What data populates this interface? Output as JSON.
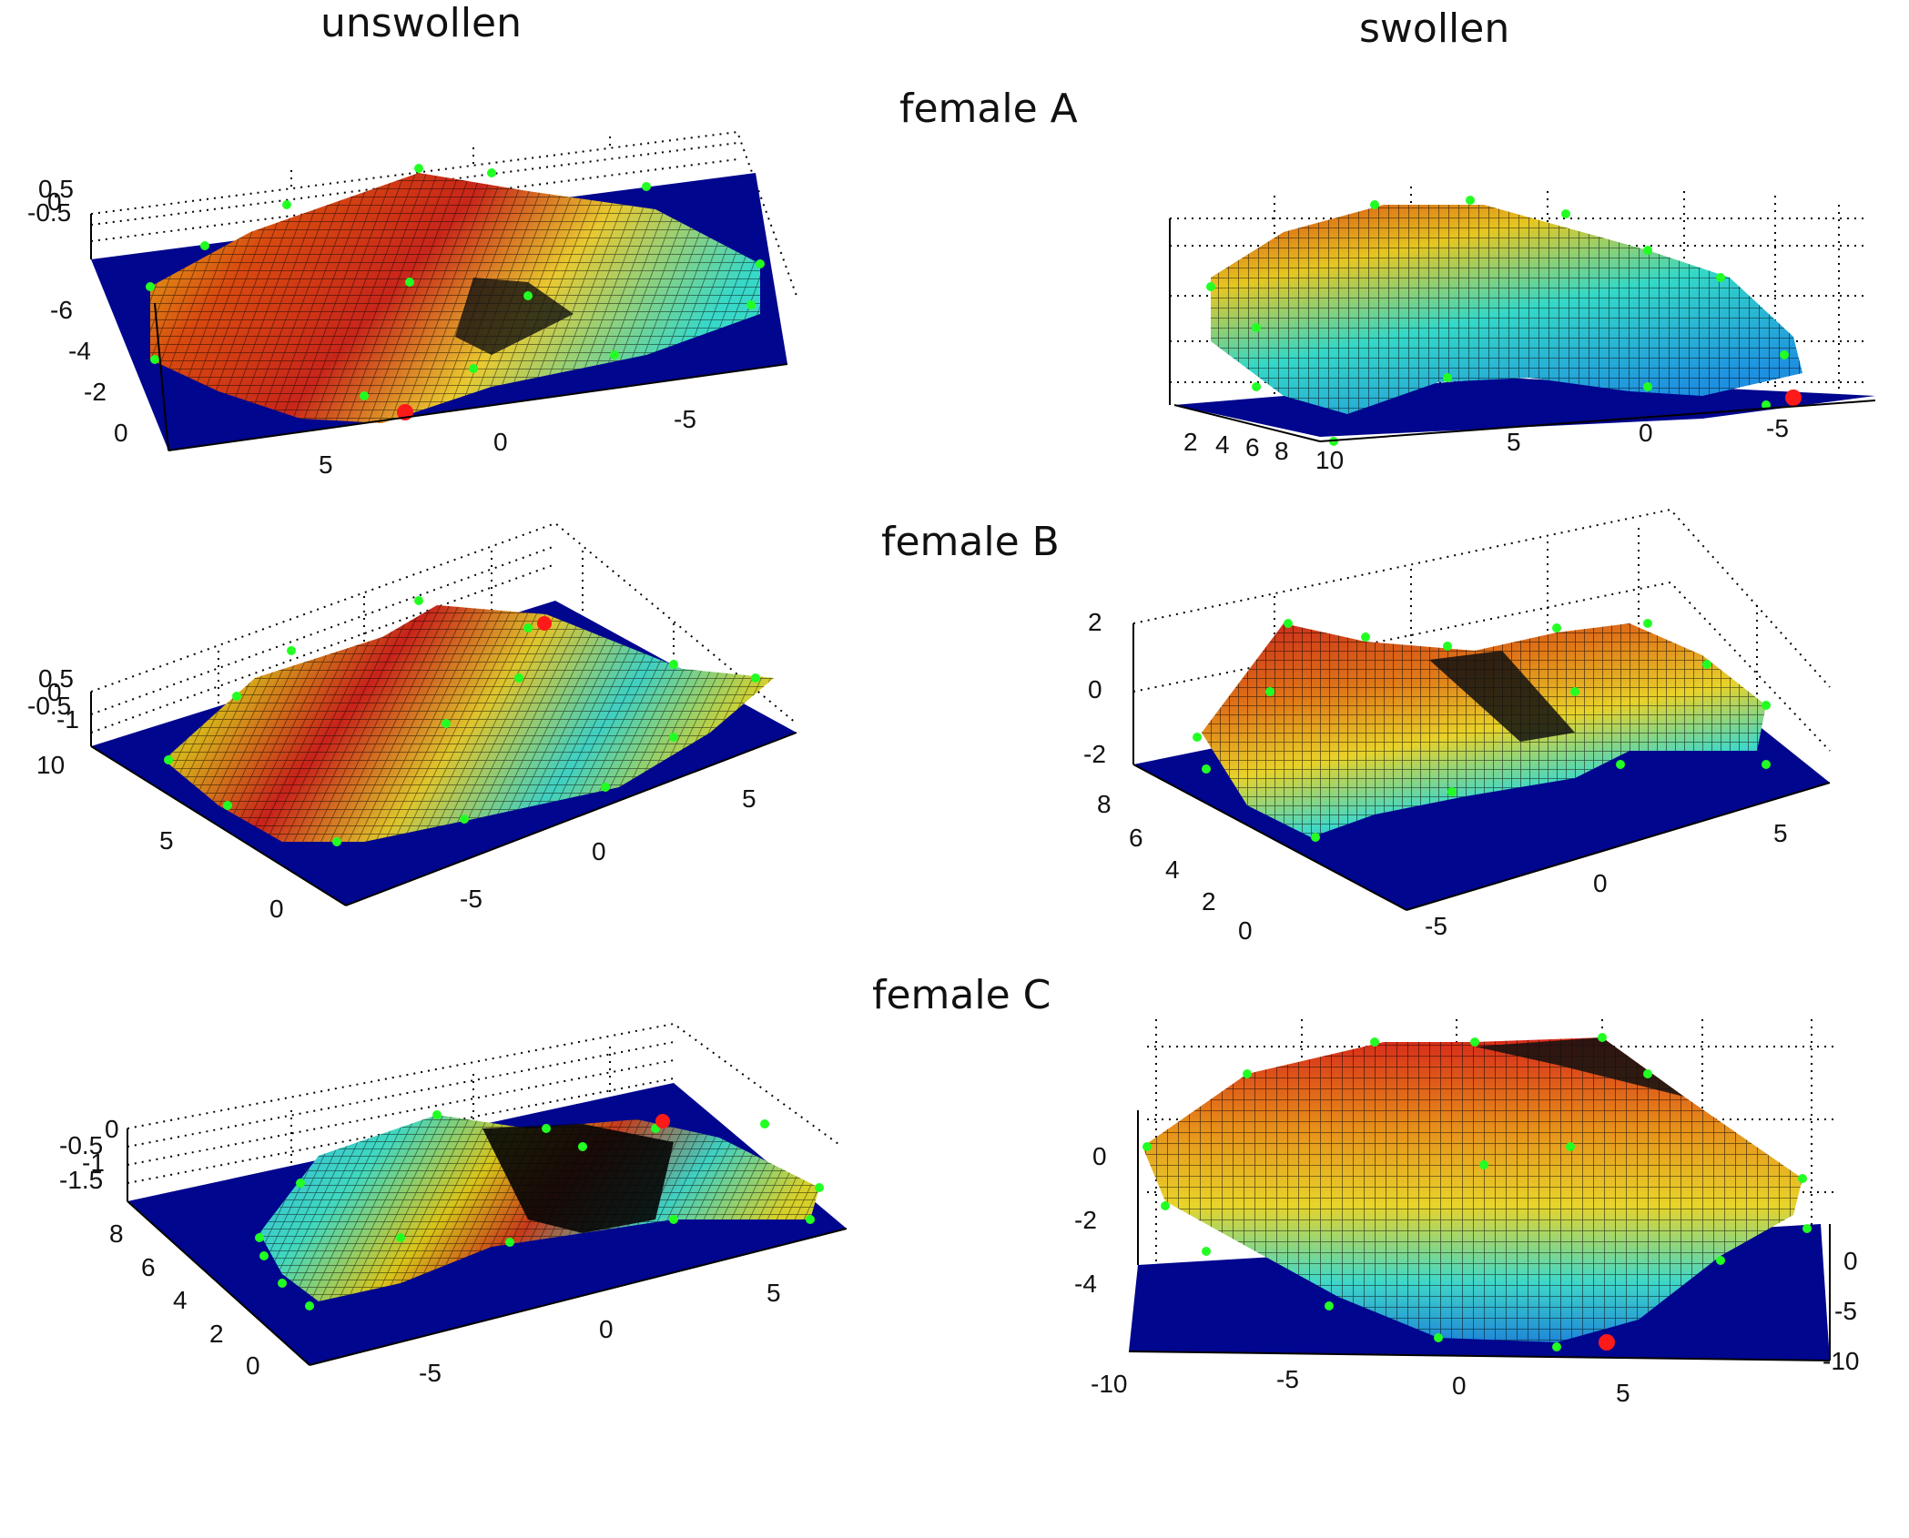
{
  "column_titles": [
    "unswollen",
    "swollen"
  ],
  "row_titles": [
    "female A",
    "female B",
    "female C"
  ],
  "colors": {
    "floor": "#00068e",
    "marker_green": "#22ff22",
    "marker_red": "#ff1a1a"
  },
  "chart_data": [
    {
      "type": "surface3d",
      "panel": "female A unswollen",
      "z_ticks": [
        "0.5",
        "0",
        "-0.5"
      ],
      "y_ticks": [
        "-6",
        "-4",
        "-2",
        "0"
      ],
      "x_ticks": [
        "5",
        "0",
        "-5"
      ]
    },
    {
      "type": "surface3d",
      "panel": "female A swollen",
      "y_ticks": [
        "2",
        "4",
        "6",
        "8",
        "10"
      ],
      "x_ticks": [
        "5",
        "0",
        "-5"
      ]
    },
    {
      "type": "surface3d",
      "panel": "female B unswollen",
      "z_ticks": [
        "0.5",
        "0",
        "-0.5",
        "-1"
      ],
      "y_ticks": [
        "10",
        "5",
        "0"
      ],
      "x_ticks": [
        "5",
        "0",
        "-5"
      ]
    },
    {
      "type": "surface3d",
      "panel": "female B swollen",
      "z_ticks": [
        "2",
        "0",
        "-2"
      ],
      "y_ticks": [
        "8",
        "6",
        "4",
        "2",
        "0"
      ],
      "x_ticks": [
        "5",
        "0",
        "-5"
      ]
    },
    {
      "type": "surface3d",
      "panel": "female C unswollen",
      "z_ticks": [
        "0",
        "-0.5",
        "-1",
        "-1.5"
      ],
      "y_ticks": [
        "8",
        "6",
        "4",
        "2",
        "0"
      ],
      "x_ticks": [
        "5",
        "0",
        "-5"
      ]
    },
    {
      "type": "surface3d",
      "panel": "female C swollen",
      "z_ticks": [
        "0",
        "-2",
        "-4"
      ],
      "y_ticks": [
        "0",
        "-5",
        "-10"
      ],
      "x_ticks": [
        "-10",
        "-5",
        "0",
        "5"
      ]
    }
  ]
}
